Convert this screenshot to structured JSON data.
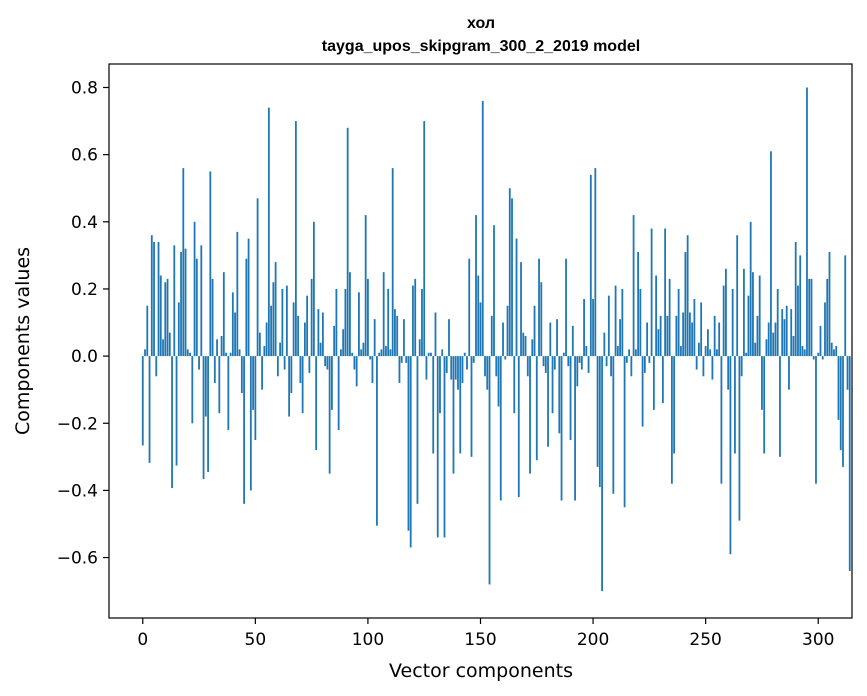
{
  "chart_data": {
    "type": "bar",
    "title": "хол",
    "subtitle": "tayga_upos_skipgram_300_2_2019 model",
    "xlabel": "Vector components",
    "ylabel": "Components values",
    "xlim": [
      -15,
      315
    ],
    "ylim": [
      -0.78,
      0.87
    ],
    "xticks": [
      0,
      50,
      100,
      150,
      200,
      250,
      300
    ],
    "yticks": [
      -0.6,
      -0.4,
      -0.2,
      0.0,
      0.2,
      0.4,
      0.6,
      0.8
    ],
    "xtick_labels": [
      "0",
      "50",
      "100",
      "150",
      "200",
      "250",
      "300"
    ],
    "ytick_labels": [
      "−0.6",
      "−0.4",
      "−0.2",
      "0.0",
      "0.2",
      "0.4",
      "0.6",
      "0.8"
    ],
    "bar_color": "#1f77b4",
    "grid": false,
    "values": [
      -0.266,
      0.02,
      0.15,
      -0.318,
      0.36,
      0.34,
      -0.06,
      0.34,
      0.24,
      0.05,
      0.22,
      0.23,
      0.07,
      -0.393,
      0.33,
      -0.326,
      0.16,
      0.31,
      0.56,
      0.32,
      0.02,
      0.01,
      -0.2,
      0.4,
      0.29,
      -0.04,
      0.33,
      -0.366,
      -0.18,
      -0.345,
      0.55,
      0.23,
      -0.08,
      0.05,
      -0.17,
      0.06,
      0.25,
      0.01,
      -0.22,
      0.01,
      0.19,
      0.13,
      0.37,
      0.02,
      -0.11,
      -0.44,
      0.29,
      0.35,
      -0.4,
      -0.16,
      -0.25,
      0.47,
      0.07,
      -0.1,
      0.03,
      0.1,
      0.74,
      0.15,
      0.22,
      0.28,
      -0.06,
      0.04,
      0.2,
      -0.04,
      0.21,
      -0.18,
      -0.11,
      0.16,
      0.7,
      0.12,
      -0.08,
      -0.17,
      0.1,
      0.18,
      -0.05,
      0.23,
      0.4,
      -0.28,
      0.14,
      0.04,
      0.13,
      -0.03,
      -0.04,
      -0.35,
      -0.16,
      0.09,
      0.2,
      -0.22,
      0.02,
      0.08,
      0.2,
      0.68,
      0.25,
      0.01,
      -0.04,
      -0.09,
      0.19,
      0.02,
      0.04,
      0.42,
      0.23,
      -0.01,
      -0.08,
      0.11,
      -0.505,
      0.01,
      0.02,
      0.25,
      0.03,
      0.2,
      0.02,
      0.56,
      0.14,
      0.12,
      -0.08,
      -0.02,
      0.11,
      -0.02,
      -0.52,
      -0.57,
      0.21,
      0.23,
      -0.44,
      0.05,
      0.2,
      0.7,
      -0.07,
      0.01,
      0.01,
      -0.29,
      0.13,
      -0.54,
      -0.17,
      0.02,
      -0.54,
      -0.05,
      0.11,
      -0.07,
      -0.35,
      -0.07,
      -0.1,
      -0.29,
      -0.08,
      0.01,
      -0.04,
      0.29,
      -0.3,
      -0.02,
      0.42,
      0.24,
      0.16,
      0.76,
      -0.06,
      -0.1,
      -0.68,
      0.12,
      0.39,
      -0.06,
      -0.15,
      -0.43,
      0.1,
      -0.01,
      0.15,
      0.5,
      0.47,
      -0.17,
      0.35,
      -0.42,
      0.28,
      0.07,
      0.06,
      -0.06,
      -0.35,
      0.05,
      0.15,
      -0.31,
      0.29,
      0.22,
      -0.03,
      -0.05,
      -0.27,
      0.1,
      -0.17,
      -0.04,
      0.11,
      -0.23,
      -0.43,
      0.01,
      0.29,
      -0.03,
      -0.25,
      0.09,
      -0.43,
      -0.09,
      -0.02,
      -0.04,
      0.17,
      0.03,
      -0.05,
      0.54,
      0.17,
      0.56,
      -0.33,
      -0.39,
      -0.7,
      0.07,
      -0.03,
      0.18,
      -0.06,
      -0.41,
      0.21,
      0.03,
      0.11,
      0.2,
      -0.45,
      -0.02,
      0.02,
      -0.06,
      0.42,
      0.02,
      0.31,
      0.2,
      -0.21,
      -0.05,
      0.1,
      -0.02,
      0.38,
      -0.16,
      0.24,
      0.08,
      0.12,
      -0.14,
      0.38,
      0.12,
      0.23,
      -0.38,
      -0.29,
      0.12,
      0.2,
      0.03,
      0.13,
      0.31,
      0.36,
      0.13,
      0.1,
      0.17,
      -0.04,
      0.04,
      0.16,
      -0.06,
      0.03,
      0.08,
      0.02,
      -0.07,
      0.12,
      0.02,
      0.1,
      -0.38,
      0.21,
      0.26,
      -0.1,
      -0.59,
      0.2,
      -0.29,
      0.36,
      -0.49,
      -0.06,
      0.26,
      0.01,
      0.18,
      0.4,
      0.25,
      0.04,
      0.12,
      0.24,
      -0.16,
      -0.29,
      0.05,
      0.1,
      0.61,
      0.07,
      0.1,
      0.2,
      -0.3,
      0.14,
      0.11,
      0.15,
      -0.1,
      0.14,
      0.06,
      0.34,
      0.21,
      0.3,
      0.03,
      0.02,
      0.8,
      0.23,
      0.23,
      -0.01,
      -0.38,
      0.01,
      0.09,
      -0.01,
      0.16,
      0.23,
      0.31,
      0.04,
      0.02,
      0.03,
      -0.19,
      -0.28,
      -0.33,
      0.3,
      -0.1,
      -0.64
    ]
  }
}
